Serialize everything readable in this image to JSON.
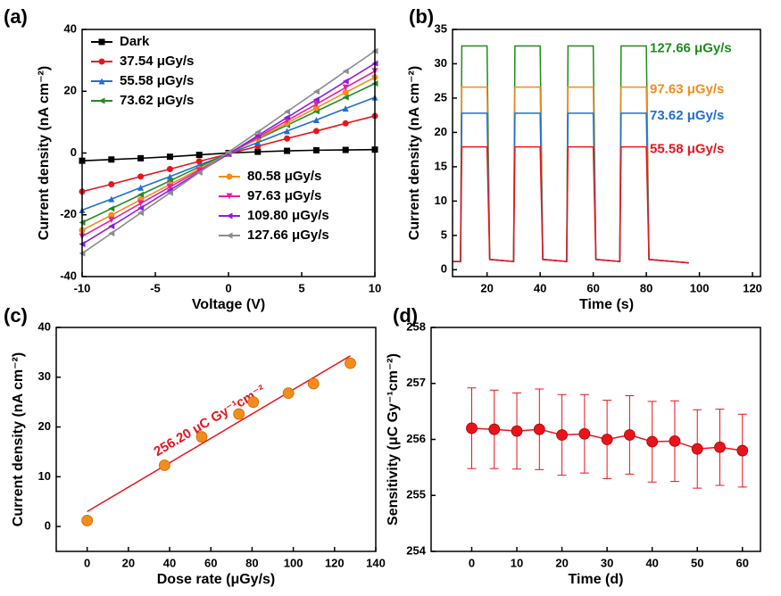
{
  "chart_data": [
    {
      "type": "line",
      "panel_label": "(a)",
      "x_label": "Voltage (V)",
      "y_label": "Current density (nA cm⁻²)",
      "x": [
        -10,
        -8,
        -6,
        -4,
        -2,
        0,
        2,
        4,
        6,
        8,
        10
      ],
      "xlim": [
        -10,
        10
      ],
      "xticks": [
        -10,
        -5,
        0,
        5,
        10
      ],
      "ylim": [
        -40,
        40
      ],
      "yticks": [
        -40,
        -20,
        0,
        20,
        40
      ],
      "series": [
        {
          "name": "Dark",
          "color": "#000000",
          "marker": "square",
          "values": [
            -2.5,
            -2.1,
            -1.7,
            -1.2,
            -0.6,
            0,
            0.4,
            0.7,
            0.9,
            1.0,
            1.1
          ]
        },
        {
          "name": "37.54 μGy/s",
          "color": "#e8141c",
          "marker": "circle",
          "values": [
            -12.5,
            -10.1,
            -7.6,
            -5.2,
            -2.7,
            -0.3,
            2.2,
            4.7,
            7.1,
            9.6,
            12.0
          ]
        },
        {
          "name": "55.58 μGy/s",
          "color": "#1f6fd0",
          "marker": "triangle",
          "values": [
            -18.5,
            -14.9,
            -11.2,
            -7.6,
            -3.9,
            -0.3,
            3.4,
            7.1,
            10.7,
            14.4,
            18.0
          ]
        },
        {
          "name": "73.62 μGy/s",
          "color": "#228b22",
          "marker": "triangle-left",
          "values": [
            -22.5,
            -18,
            -13.5,
            -9,
            -4.5,
            0,
            4.5,
            9,
            13.5,
            18,
            22.5
          ]
        },
        {
          "name": "80.58 μGy/s",
          "color": "#f28c1c",
          "marker": "circle",
          "values": [
            -25,
            -20.1,
            -15.1,
            -10.2,
            -5.2,
            -0.3,
            4.7,
            9.7,
            14.6,
            19.6,
            24.5
          ]
        },
        {
          "name": "97.63 μGy/s",
          "color": "#e61fa0",
          "marker": "triangle-down",
          "values": [
            -27,
            -21.7,
            -16.3,
            -11,
            -5.6,
            -0.3,
            5.1,
            10.5,
            15.8,
            21.2,
            26.5
          ]
        },
        {
          "name": "109.80 μGy/s",
          "color": "#8a1fe0",
          "marker": "triangle-left",
          "values": [
            -29.5,
            -23.7,
            -17.8,
            -12,
            -6.1,
            -0.3,
            5.6,
            11.5,
            17.3,
            23.2,
            29
          ]
        },
        {
          "name": "127.66 μGy/s",
          "color": "#8c8c8c",
          "marker": "triangle-left",
          "values": [
            -32.5,
            -26,
            -19.4,
            -12.9,
            -6.3,
            0.3,
            6.8,
            13.4,
            19.9,
            26.5,
            33
          ]
        }
      ]
    },
    {
      "type": "line",
      "panel_label": "(b)",
      "x_label": "Time (s)",
      "y_label": "Current density (nA cm⁻²)",
      "x": [
        7,
        10,
        10.5,
        20,
        21,
        30,
        30.5,
        40,
        41,
        50,
        50.5,
        60,
        61,
        70,
        70.5,
        80,
        81,
        96
      ],
      "xlim": [
        7,
        123
      ],
      "xticks": [
        20,
        40,
        60,
        80,
        100,
        120
      ],
      "ylim": [
        -1,
        35
      ],
      "yticks": [
        0,
        5,
        10,
        15,
        20,
        25,
        30,
        35
      ],
      "series": [
        {
          "name": "127.66 μGy/s",
          "color": "#1e8c1e",
          "values": [
            1.2,
            1.2,
            32.6,
            32.6,
            1.5,
            1.2,
            32.6,
            32.6,
            1.5,
            1.2,
            32.6,
            32.6,
            1.5,
            1.2,
            32.6,
            32.6,
            1.5,
            1.0
          ]
        },
        {
          "name": "97.63 μGy/s",
          "color": "#f28c1c",
          "values": [
            1.2,
            1.2,
            26.6,
            26.6,
            1.5,
            1.2,
            26.6,
            26.6,
            1.5,
            1.2,
            26.6,
            26.6,
            1.5,
            1.2,
            26.6,
            26.6,
            1.5,
            1.0
          ]
        },
        {
          "name": "73.62 μGy/s",
          "color": "#1f6fd0",
          "values": [
            1.2,
            1.2,
            22.8,
            22.8,
            1.5,
            1.2,
            22.8,
            22.8,
            1.5,
            1.2,
            22.8,
            22.8,
            1.5,
            1.2,
            22.8,
            22.8,
            1.5,
            1.0
          ]
        },
        {
          "name": "55.58 μGy/s",
          "color": "#e8141c",
          "values": [
            1.2,
            1.2,
            17.9,
            17.9,
            1.5,
            1.2,
            17.9,
            17.9,
            1.5,
            1.2,
            17.9,
            17.9,
            1.5,
            1.2,
            17.9,
            17.9,
            1.5,
            1.0
          ]
        }
      ]
    },
    {
      "type": "scatter",
      "panel_label": "(c)",
      "x_label": "Dose rate (μGy/s)",
      "y_label": "Current density (nA cm⁻²)",
      "annotation": "256.20 μC Gy⁻¹cm⁻²",
      "x": [
        0,
        37.54,
        55.58,
        73.62,
        80.58,
        97.63,
        109.8,
        127.66
      ],
      "values": [
        1.2,
        12.3,
        18.0,
        22.6,
        25.0,
        26.8,
        28.7,
        32.8
      ],
      "color": "#f28c1c",
      "fit": {
        "x": [
          0,
          127.66
        ],
        "y": [
          3.0,
          34.3
        ],
        "color": "#e8141c"
      },
      "xlim": [
        -15,
        140
      ],
      "xticks": [
        0,
        20,
        40,
        60,
        80,
        100,
        120,
        140
      ],
      "ylim": [
        -5,
        40
      ],
      "yticks": [
        0,
        10,
        20,
        30,
        40
      ]
    },
    {
      "type": "errorbar",
      "panel_label": "(d)",
      "x_label": "Time (d)",
      "y_label": "Sensitivity (μC Gy⁻¹cm⁻²)",
      "x": [
        0,
        5,
        10,
        15,
        20,
        25,
        30,
        35,
        40,
        45,
        50,
        55,
        60
      ],
      "values": [
        256.2,
        256.18,
        256.15,
        256.18,
        256.08,
        256.1,
        256.0,
        256.08,
        255.96,
        255.97,
        255.83,
        255.86,
        255.8
      ],
      "errors": [
        0.72,
        0.7,
        0.68,
        0.72,
        0.72,
        0.7,
        0.7,
        0.7,
        0.72,
        0.72,
        0.7,
        0.68,
        0.65
      ],
      "color": "#e8141c",
      "xlim": [
        -9,
        64
      ],
      "xticks": [
        0,
        10,
        20,
        30,
        40,
        50,
        60
      ],
      "ylim": [
        254,
        258
      ],
      "yticks": [
        254,
        255,
        256,
        257,
        258
      ]
    }
  ]
}
